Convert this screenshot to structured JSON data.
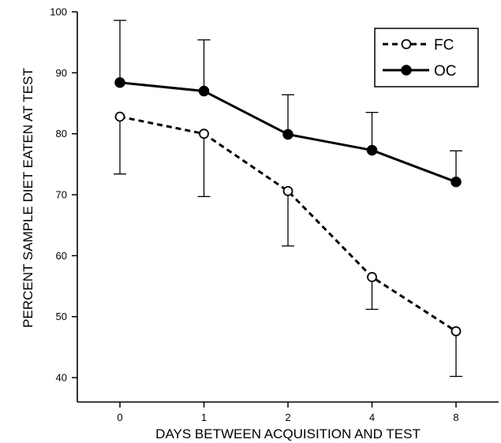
{
  "chart_data": {
    "type": "line",
    "title": "",
    "xlabel": "DAYS BETWEEN ACQUISITION AND TEST",
    "ylabel": "PERCENT SAMPLE DIET EATEN AT TEST",
    "categories": [
      "0",
      "1",
      "2",
      "4",
      "8"
    ],
    "ylim": [
      36,
      100
    ],
    "yticks": [
      40,
      50,
      60,
      70,
      80,
      90,
      100
    ],
    "grid": false,
    "legend_position": "top-right",
    "series": [
      {
        "name": "FC",
        "style": "dashed",
        "marker": "open-circle",
        "values": [
          82.8,
          80.0,
          70.6,
          56.5,
          47.6
        ],
        "error_upper": [
          82.8,
          80.0,
          70.6,
          56.5,
          47.6
        ],
        "error_lower": [
          73.4,
          69.7,
          61.6,
          51.2,
          40.2
        ]
      },
      {
        "name": "OC",
        "style": "solid",
        "marker": "filled-circle",
        "values": [
          88.4,
          87.0,
          79.9,
          77.3,
          72.1
        ],
        "error_upper": [
          98.6,
          95.4,
          86.4,
          83.5,
          77.2
        ],
        "error_lower": [
          88.4,
          87.0,
          79.9,
          77.3,
          72.1
        ]
      }
    ]
  }
}
